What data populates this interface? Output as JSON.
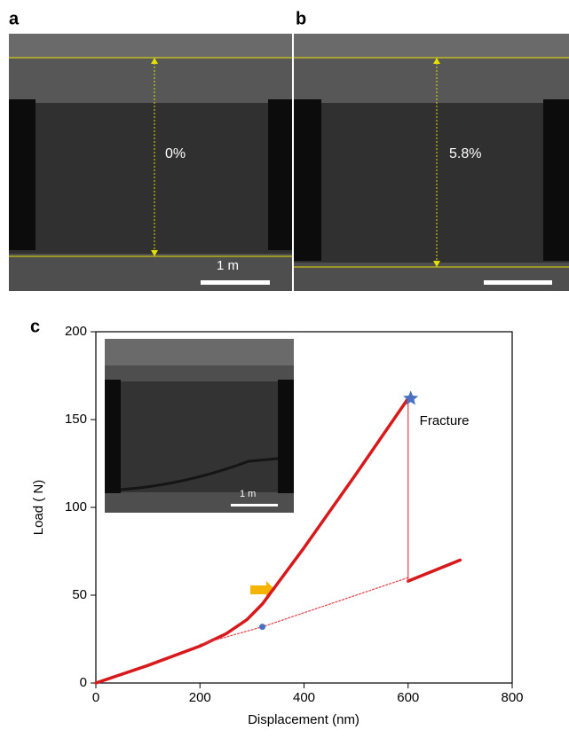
{
  "panels": [
    {
      "label": "a",
      "strain": "0%",
      "scale": "1 m"
    },
    {
      "label": "b",
      "strain": "5.8%"
    },
    {
      "label": "c",
      "scale": "1 m"
    }
  ],
  "chart_data": {
    "type": "line",
    "xlabel": "Displacement (nm)",
    "ylabel": "Load ( N)",
    "xlim": [
      0,
      800
    ],
    "ylim": [
      0,
      200
    ],
    "xticks": [
      0,
      200,
      400,
      600,
      800
    ],
    "yticks": [
      0,
      50,
      100,
      150,
      200
    ],
    "annotation": "Fracture",
    "series": [
      {
        "color": "#d7191c",
        "x": [
          0,
          100,
          200,
          250,
          290,
          320,
          350,
          400,
          500,
          600
        ],
        "values": [
          0,
          10,
          21,
          28,
          36,
          45,
          57,
          77,
          119,
          162
        ]
      },
      {
        "color": "#d7191c",
        "x": [
          600,
          700
        ],
        "values": [
          58,
          70
        ]
      },
      {
        "color": "#e0404a",
        "x": [
          600,
          600
        ],
        "values": [
          162,
          58
        ]
      },
      {
        "color": "#e0404a",
        "x": [
          200,
          320,
          600
        ],
        "values": [
          22,
          32,
          60
        ]
      }
    ],
    "points": [
      {
        "color": "#4a72c4",
        "x": 605,
        "value": 162
      },
      {
        "color": "#4a72c4",
        "x": 320,
        "value": 32
      }
    ]
  }
}
